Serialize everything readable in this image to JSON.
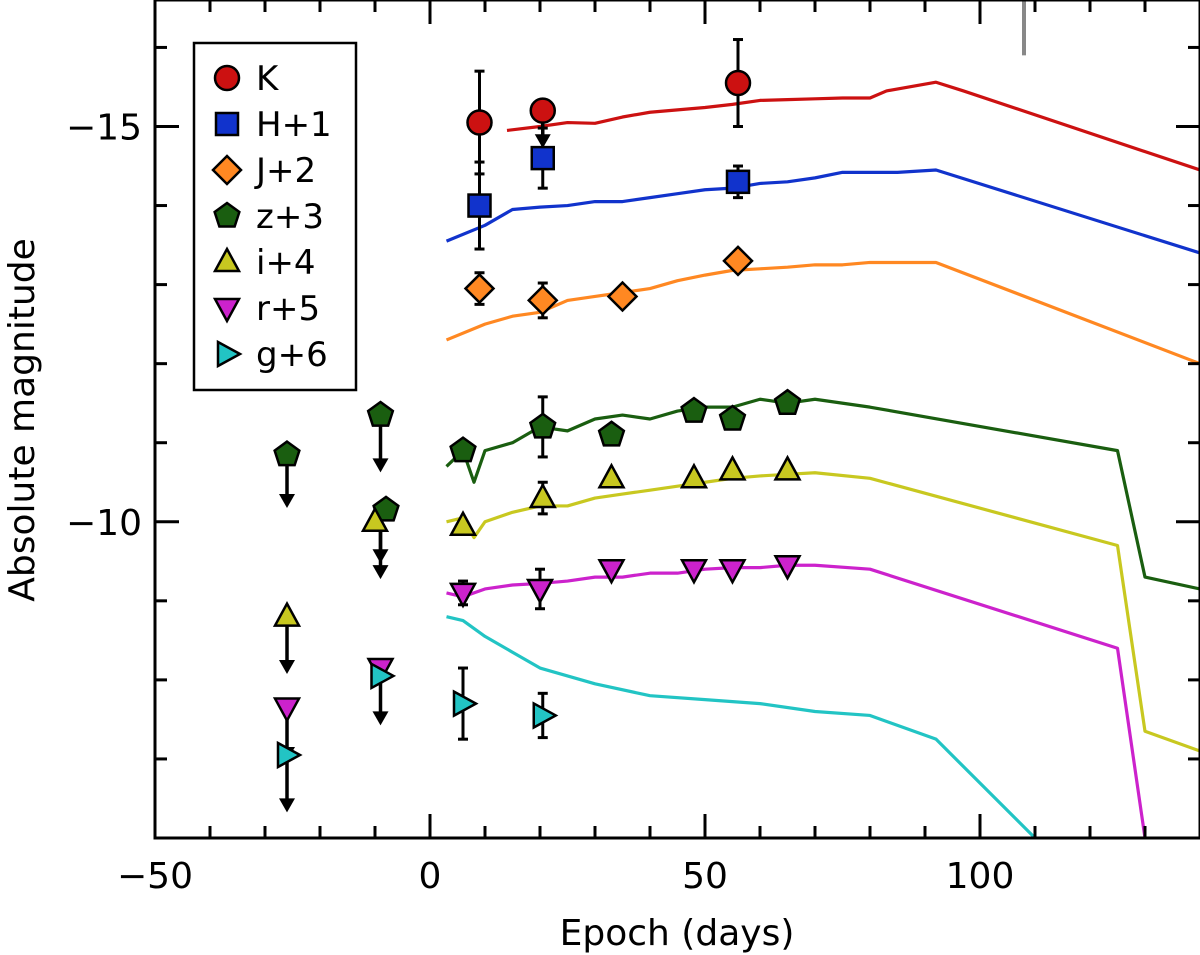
{
  "chart_data": {
    "type": "scatter",
    "xlabel": "Epoch (days)",
    "ylabel": "Absolute magnitude",
    "xlim": [
      -50,
      140
    ],
    "ylim": [
      -6,
      -16.6
    ],
    "y_inverted": true,
    "xticks": [
      -50,
      0,
      50,
      100
    ],
    "yticks": [
      -10,
      -15
    ],
    "xtick_labels": [
      "−50",
      "0",
      "50",
      "100"
    ],
    "ytick_labels": [
      "−10",
      "−15"
    ],
    "marker_line": {
      "x": 108,
      "y_range": [
        -16.6,
        -15.9
      ],
      "color": "#888888"
    },
    "legend": {
      "position": "top-left"
    },
    "series": [
      {
        "name": "K",
        "marker": "circle",
        "color": "#cc1111",
        "points": [
          {
            "x": 9,
            "y": -15.05,
            "err": 0.65
          },
          {
            "x": 20.5,
            "y": -15.2
          },
          {
            "x": 56,
            "y": -15.55,
            "err": 0.55
          }
        ],
        "upper_limits": [
          {
            "x": 20.5,
            "y": -15.2,
            "to": -14.75
          }
        ],
        "model": [
          [
            14,
            -14.95
          ],
          [
            20,
            -15.0
          ],
          [
            25,
            -15.05
          ],
          [
            30,
            -15.04
          ],
          [
            35,
            -15.12
          ],
          [
            40,
            -15.18
          ],
          [
            45,
            -15.21
          ],
          [
            50,
            -15.24
          ],
          [
            55,
            -15.28
          ],
          [
            60,
            -15.33
          ],
          [
            65,
            -15.34
          ],
          [
            70,
            -15.35
          ],
          [
            75,
            -15.36
          ],
          [
            80,
            -15.36
          ],
          [
            83,
            -15.45
          ],
          [
            92,
            -15.56
          ],
          [
            97,
            -15.45
          ],
          [
            140,
            -14.45
          ]
        ]
      },
      {
        "name": "H+1",
        "marker": "square",
        "color": "#1133cc",
        "points": [
          {
            "x": 9,
            "y": -14.0,
            "err": 0.55
          },
          {
            "x": 20.5,
            "y": -14.6,
            "err": 0.38
          },
          {
            "x": 56,
            "y": -14.3,
            "err": 0.2
          }
        ],
        "upper_limits": [],
        "model": [
          [
            3,
            -13.55
          ],
          [
            10,
            -13.75
          ],
          [
            15,
            -13.95
          ],
          [
            20,
            -13.98
          ],
          [
            25,
            -14.0
          ],
          [
            30,
            -14.05
          ],
          [
            35,
            -14.05
          ],
          [
            40,
            -14.1
          ],
          [
            45,
            -14.15
          ],
          [
            50,
            -14.2
          ],
          [
            55,
            -14.22
          ],
          [
            60,
            -14.28
          ],
          [
            65,
            -14.3
          ],
          [
            70,
            -14.35
          ],
          [
            75,
            -14.42
          ],
          [
            80,
            -14.42
          ],
          [
            85,
            -14.42
          ],
          [
            92,
            -14.45
          ],
          [
            140,
            -13.4
          ]
        ]
      },
      {
        "name": "J+2",
        "marker": "diamond",
        "color": "#ff8822",
        "points": [
          {
            "x": 9,
            "y": -12.95,
            "err": 0.2
          },
          {
            "x": 20.5,
            "y": -12.8,
            "err": 0.22
          },
          {
            "x": 35,
            "y": -12.85
          },
          {
            "x": 56,
            "y": -13.3
          }
        ],
        "upper_limits": [],
        "model": [
          [
            3,
            -12.3
          ],
          [
            10,
            -12.5
          ],
          [
            15,
            -12.6
          ],
          [
            20,
            -12.65
          ],
          [
            25,
            -12.8
          ],
          [
            30,
            -12.85
          ],
          [
            35,
            -12.9
          ],
          [
            40,
            -12.95
          ],
          [
            45,
            -13.05
          ],
          [
            50,
            -13.12
          ],
          [
            55,
            -13.18
          ],
          [
            60,
            -13.2
          ],
          [
            65,
            -13.22
          ],
          [
            70,
            -13.25
          ],
          [
            75,
            -13.25
          ],
          [
            80,
            -13.28
          ],
          [
            92,
            -13.28
          ],
          [
            140,
            -12.0
          ]
        ]
      },
      {
        "name": "z+3",
        "marker": "pentagon",
        "color": "#1a5e10",
        "points": [
          {
            "x": -26,
            "y": -10.85
          },
          {
            "x": -9,
            "y": -11.35
          },
          {
            "x": -8,
            "y": -10.15
          },
          {
            "x": 6,
            "y": -10.9
          },
          {
            "x": 20.5,
            "y": -11.2,
            "err": 0.38
          },
          {
            "x": 33,
            "y": -11.1
          },
          {
            "x": 48,
            "y": -11.4
          },
          {
            "x": 55,
            "y": -11.3
          },
          {
            "x": 65,
            "y": -11.5
          }
        ],
        "upper_limits": [
          {
            "x": -26,
            "y": -10.85,
            "to": -10.2
          },
          {
            "x": -9,
            "y": -11.35,
            "to": -10.65
          },
          {
            "x": -9,
            "y": -10.15,
            "to": -9.5
          }
        ],
        "model": [
          [
            3,
            -10.7
          ],
          [
            6,
            -10.9
          ],
          [
            8,
            -10.5
          ],
          [
            10,
            -10.9
          ],
          [
            15,
            -11.0
          ],
          [
            20,
            -11.2
          ],
          [
            25,
            -11.15
          ],
          [
            30,
            -11.3
          ],
          [
            35,
            -11.35
          ],
          [
            40,
            -11.3
          ],
          [
            45,
            -11.4
          ],
          [
            50,
            -11.45
          ],
          [
            55,
            -11.45
          ],
          [
            60,
            -11.55
          ],
          [
            65,
            -11.5
          ],
          [
            70,
            -11.55
          ],
          [
            80,
            -11.45
          ],
          [
            125,
            -10.9
          ],
          [
            130,
            -9.3
          ],
          [
            140,
            -9.15
          ]
        ]
      },
      {
        "name": "i+4",
        "marker": "triangle-up",
        "color": "#c8c820",
        "points": [
          {
            "x": -26,
            "y": -8.8
          },
          {
            "x": -10,
            "y": -10.0
          },
          {
            "x": 6,
            "y": -9.95
          },
          {
            "x": 20.5,
            "y": -10.3,
            "err": 0.2
          },
          {
            "x": 33,
            "y": -10.55
          },
          {
            "x": 48,
            "y": -10.55
          },
          {
            "x": 55,
            "y": -10.65
          },
          {
            "x": 65,
            "y": -10.65
          }
        ],
        "upper_limits": [
          {
            "x": -26,
            "y": -8.8,
            "to": -8.1
          },
          {
            "x": -9,
            "y": -10.0,
            "to": -9.3
          }
        ],
        "model": [
          [
            3,
            -10.0
          ],
          [
            6,
            -10.05
          ],
          [
            8,
            -9.8
          ],
          [
            10,
            -10.0
          ],
          [
            15,
            -10.12
          ],
          [
            20,
            -10.2
          ],
          [
            25,
            -10.2
          ],
          [
            30,
            -10.3
          ],
          [
            35,
            -10.35
          ],
          [
            40,
            -10.4
          ],
          [
            45,
            -10.45
          ],
          [
            50,
            -10.5
          ],
          [
            55,
            -10.55
          ],
          [
            60,
            -10.58
          ],
          [
            65,
            -10.6
          ],
          [
            70,
            -10.62
          ],
          [
            80,
            -10.55
          ],
          [
            125,
            -9.7
          ],
          [
            130,
            -7.35
          ],
          [
            140,
            -7.1
          ]
        ]
      },
      {
        "name": "r+5",
        "marker": "triangle-down",
        "color": "#cc22cc",
        "points": [
          {
            "x": -26,
            "y": -7.65
          },
          {
            "x": -9,
            "y": -8.15
          },
          {
            "x": 6,
            "y": -9.1,
            "err": 0.15
          },
          {
            "x": 20,
            "y": -9.15,
            "err": 0.25
          },
          {
            "x": 33,
            "y": -9.4
          },
          {
            "x": 48,
            "y": -9.4
          },
          {
            "x": 55,
            "y": -9.4
          },
          {
            "x": 65,
            "y": -9.45
          }
        ],
        "upper_limits": [
          {
            "x": -26,
            "y": -7.65,
            "to": -7.0
          },
          {
            "x": -9,
            "y": -8.15,
            "to": -7.45
          }
        ],
        "model": [
          [
            3,
            -9.1
          ],
          [
            6,
            -9.05
          ],
          [
            8,
            -9.1
          ],
          [
            10,
            -9.15
          ],
          [
            15,
            -9.2
          ],
          [
            20,
            -9.22
          ],
          [
            25,
            -9.25
          ],
          [
            30,
            -9.3
          ],
          [
            35,
            -9.3
          ],
          [
            40,
            -9.35
          ],
          [
            45,
            -9.35
          ],
          [
            50,
            -9.4
          ],
          [
            55,
            -9.42
          ],
          [
            60,
            -9.42
          ],
          [
            65,
            -9.45
          ],
          [
            70,
            -9.45
          ],
          [
            80,
            -9.4
          ],
          [
            125,
            -8.4
          ],
          [
            130,
            -6.0
          ]
        ]
      },
      {
        "name": "g+6",
        "marker": "triangle-right",
        "color": "#22c4c4",
        "points": [
          {
            "x": -26,
            "y": -7.05
          },
          {
            "x": -9,
            "y": -8.05
          },
          {
            "x": 6,
            "y": -7.7,
            "err": 0.45
          },
          {
            "x": 20.5,
            "y": -7.55,
            "err": 0.28
          }
        ],
        "upper_limits": [
          {
            "x": -26,
            "y": -7.05,
            "to": -6.35
          }
        ],
        "model": [
          [
            3,
            -8.8
          ],
          [
            6,
            -8.75
          ],
          [
            10,
            -8.55
          ],
          [
            15,
            -8.35
          ],
          [
            20,
            -8.15
          ],
          [
            25,
            -8.05
          ],
          [
            30,
            -7.95
          ],
          [
            40,
            -7.8
          ],
          [
            50,
            -7.75
          ],
          [
            60,
            -7.7
          ],
          [
            70,
            -7.6
          ],
          [
            80,
            -7.55
          ],
          [
            92,
            -7.25
          ],
          [
            110,
            -6.0
          ]
        ]
      }
    ]
  }
}
